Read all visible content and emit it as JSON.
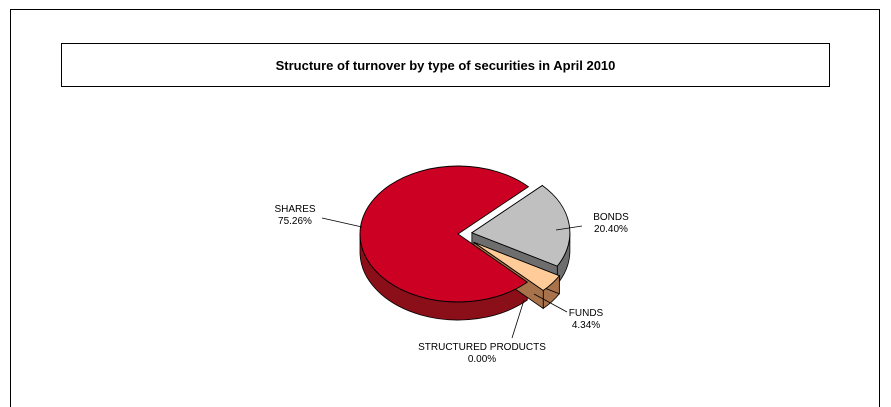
{
  "chart_data": {
    "type": "pie",
    "title": "Structure of turnover by type of securities in April 2010",
    "slices": [
      {
        "label": "SHARES",
        "value": 75.26,
        "pct_text": "75.26%",
        "color": "#cc0022",
        "side_color": "#8b0f18",
        "exploded": false
      },
      {
        "label": "BONDS",
        "value": 20.4,
        "pct_text": "20.40%",
        "color": "#c0c0c0",
        "side_color": "#6e6e6e",
        "exploded": true
      },
      {
        "label": "FUNDS",
        "value": 4.34,
        "pct_text": "4.34%",
        "color": "#ffcc99",
        "side_color": "#a8724a",
        "exploded": true
      },
      {
        "label": "STRUCTURED PRODUCTS",
        "value": 0.0,
        "pct_text": "0.00%",
        "color": "#888888",
        "side_color": "#555555",
        "exploded": false
      }
    ],
    "legend": "none",
    "style": "3d-pie-exploded"
  }
}
